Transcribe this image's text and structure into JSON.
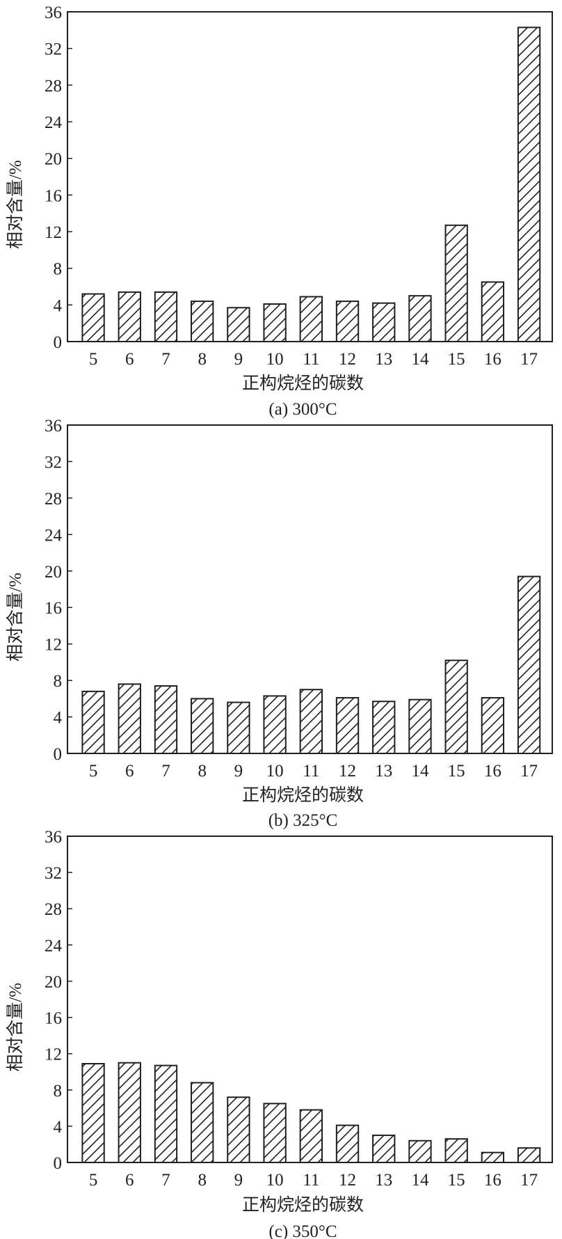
{
  "chart_data": [
    {
      "type": "bar",
      "caption": "(a) 300°C",
      "xlabel": "正构烷烃的碳数",
      "ylabel": "相对含量/%",
      "categories": [
        "5",
        "6",
        "7",
        "8",
        "9",
        "10",
        "11",
        "12",
        "13",
        "14",
        "15",
        "16",
        "17"
      ],
      "values": [
        5.2,
        5.4,
        5.4,
        4.4,
        3.7,
        4.1,
        4.9,
        4.4,
        4.2,
        5.0,
        12.7,
        6.5,
        34.3
      ],
      "ylim": [
        0,
        36
      ],
      "yticks": [
        "0",
        "4",
        "8",
        "12",
        "16",
        "20",
        "24",
        "28",
        "32",
        "36"
      ],
      "grid": false,
      "bar_fill": "diagonal-hatch",
      "color": "#231f20"
    },
    {
      "type": "bar",
      "caption": "(b) 325°C",
      "xlabel": "正构烷烃的碳数",
      "ylabel": "相对含量/%",
      "categories": [
        "5",
        "6",
        "7",
        "8",
        "9",
        "10",
        "11",
        "12",
        "13",
        "14",
        "15",
        "16",
        "17"
      ],
      "values": [
        6.8,
        7.6,
        7.4,
        6.0,
        5.6,
        6.3,
        7.0,
        6.1,
        5.7,
        5.9,
        10.2,
        6.1,
        19.4
      ],
      "ylim": [
        0,
        36
      ],
      "yticks": [
        "0",
        "4",
        "8",
        "12",
        "16",
        "20",
        "24",
        "28",
        "32",
        "36"
      ],
      "grid": false,
      "bar_fill": "diagonal-hatch",
      "color": "#231f20"
    },
    {
      "type": "bar",
      "caption": "(c) 350°C",
      "xlabel": "正构烷烃的碳数",
      "ylabel": "相对含量/%",
      "categories": [
        "5",
        "6",
        "7",
        "8",
        "9",
        "10",
        "11",
        "12",
        "13",
        "14",
        "15",
        "16",
        "17"
      ],
      "values": [
        10.9,
        11.0,
        10.7,
        8.8,
        7.2,
        6.5,
        5.8,
        4.1,
        3.0,
        2.4,
        2.6,
        1.1,
        1.6
      ],
      "ylim": [
        0,
        36
      ],
      "yticks": [
        "0",
        "4",
        "8",
        "12",
        "16",
        "20",
        "24",
        "28",
        "32",
        "36"
      ],
      "grid": false,
      "bar_fill": "diagonal-hatch",
      "color": "#231f20"
    }
  ]
}
